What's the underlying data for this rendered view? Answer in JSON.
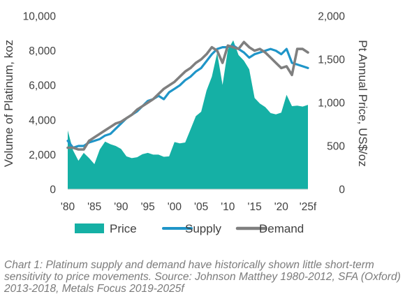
{
  "caption": "Chart 1: Platinum supply and demand have historically shown little short-term sensitivity to price movements. Source: Johnson Matthey 1980-2012, SFA (Oxford) 2013-2018, Metals Focus 2019-2025f",
  "chart_data": {
    "type": "line",
    "ylabel": "Volume of Platinum, koz",
    "y2label": "Pt Annual Price, US$/oz",
    "x_ticks": [
      "'80",
      "'85",
      "'90",
      "'95",
      "'00",
      "'05",
      "'10",
      "'15",
      "'20",
      "'25f"
    ],
    "xlim": [
      1980,
      2025
    ],
    "ylim": [
      0,
      10000
    ],
    "y_ticks": [
      "0",
      "2,000",
      "4,000",
      "6,000",
      "8,000",
      "10,000"
    ],
    "y2lim": [
      0,
      2000
    ],
    "y2_ticks": [
      "0",
      "500",
      "1,000",
      "1,500",
      "2,000"
    ],
    "grid": false,
    "legend_position": "bottom",
    "colors": {
      "price": "#15b0a5",
      "supply": "#1f95c8",
      "demand": "#7f7f7f"
    },
    "x": [
      1980,
      1981,
      1982,
      1983,
      1984,
      1985,
      1986,
      1987,
      1988,
      1989,
      1990,
      1991,
      1992,
      1993,
      1994,
      1995,
      1996,
      1997,
      1998,
      1999,
      2000,
      2001,
      2002,
      2003,
      2004,
      2005,
      2006,
      2007,
      2008,
      2009,
      2010,
      2011,
      2012,
      2013,
      2014,
      2015,
      2016,
      2017,
      2018,
      2019,
      2020,
      2021,
      2022,
      2023,
      2024,
      2025
    ],
    "series": [
      {
        "name": "Price",
        "axis": "right",
        "type": "area",
        "values": [
          680,
          450,
          330,
          420,
          360,
          290,
          460,
          550,
          520,
          500,
          465,
          380,
          360,
          370,
          405,
          420,
          400,
          400,
          375,
          380,
          545,
          530,
          540,
          690,
          845,
          895,
          1140,
          1300,
          1575,
          1205,
          1610,
          1720,
          1550,
          1485,
          1385,
          1055,
          990,
          950,
          880,
          865,
          885,
          1090,
          960,
          965,
          955,
          975
        ]
      },
      {
        "name": "Supply",
        "axis": "left",
        "type": "line",
        "values": [
          2800,
          2400,
          2500,
          2500,
          2700,
          2800,
          2900,
          3100,
          3200,
          3500,
          3800,
          4100,
          4300,
          4500,
          4800,
          5100,
          5200,
          5400,
          5200,
          5600,
          5800,
          6000,
          6300,
          6500,
          6800,
          7000,
          7400,
          7800,
          8100,
          8200,
          8200,
          8300,
          8100,
          7900,
          7600,
          7800,
          7900,
          8000,
          8100,
          8000,
          7800,
          8100,
          7300,
          7200,
          7100,
          7000
        ]
      },
      {
        "name": "Demand",
        "axis": "left",
        "type": "line",
        "values": [
          2400,
          2400,
          2300,
          2300,
          2800,
          3000,
          3200,
          3400,
          3600,
          3800,
          3900,
          4100,
          4300,
          4600,
          4800,
          5000,
          5200,
          5500,
          5800,
          6000,
          6200,
          6500,
          6800,
          7000,
          7300,
          7500,
          7800,
          8200,
          8000,
          7300,
          8300,
          8200,
          8100,
          8500,
          8200,
          8000,
          8100,
          7900,
          7600,
          7300,
          7000,
          7100,
          6600,
          8100,
          8100,
          7900
        ]
      }
    ]
  }
}
